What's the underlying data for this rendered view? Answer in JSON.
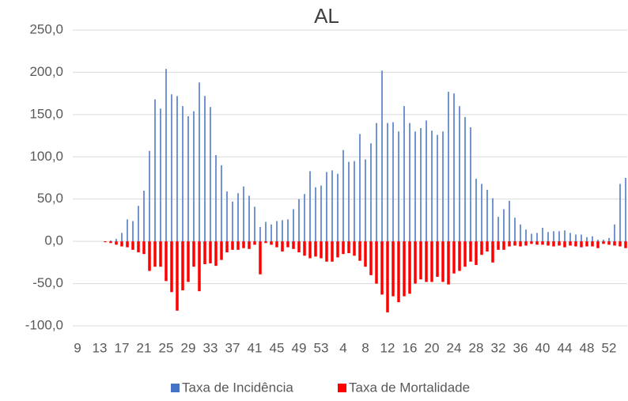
{
  "chart_data": {
    "type": "bar",
    "title": "AL",
    "categories": [
      "9",
      null,
      null,
      null,
      "13",
      null,
      null,
      null,
      "17",
      null,
      null,
      null,
      "21",
      null,
      null,
      null,
      "25",
      null,
      null,
      null,
      "29",
      null,
      null,
      null,
      "33",
      null,
      null,
      null,
      "37",
      null,
      null,
      null,
      "41",
      null,
      null,
      null,
      "45",
      null,
      null,
      null,
      "49",
      null,
      null,
      null,
      "53",
      null,
      null,
      null,
      "4",
      null,
      null,
      null,
      "8",
      null,
      null,
      null,
      "12",
      null,
      null,
      null,
      "16",
      null,
      null,
      null,
      "20",
      null,
      null,
      null,
      "24",
      null,
      null,
      null,
      "28",
      null,
      null,
      null,
      "32",
      null,
      null,
      null,
      "36",
      null,
      null,
      null,
      "40",
      null,
      null,
      null,
      "44",
      null,
      null,
      null,
      "48",
      null,
      null,
      null,
      "52",
      null,
      null,
      null
    ],
    "series": [
      {
        "name": "Taxa de Incidência",
        "color": "#4472c4",
        "values": [
          0,
          0,
          0,
          0,
          0,
          0,
          1,
          3,
          10,
          26,
          24,
          42,
          60,
          107,
          168,
          157,
          204,
          174,
          172,
          160,
          148,
          154,
          188,
          172,
          159,
          102,
          90,
          59,
          47,
          57,
          65,
          54,
          41,
          17,
          23,
          20,
          24,
          25,
          26,
          38,
          50,
          56,
          83,
          64,
          66,
          82,
          84,
          80,
          108,
          94,
          95,
          127,
          97,
          116,
          140,
          202,
          140,
          141,
          130,
          160,
          140,
          130,
          134,
          143,
          131,
          126,
          130,
          177,
          175,
          160,
          147,
          135,
          74,
          68,
          61,
          51,
          29,
          38,
          48,
          28,
          20,
          14,
          9,
          10,
          16,
          11,
          12,
          12,
          13,
          10,
          8,
          8,
          5,
          6,
          2,
          2,
          4,
          20,
          68,
          75
        ]
      },
      {
        "name": "Taxa de Mortalidade",
        "color": "#ff0000",
        "values": [
          0,
          0,
          0,
          0,
          0,
          -1,
          -2,
          -4,
          -6,
          -7,
          -10,
          -13,
          -15,
          -35,
          -30,
          -30,
          -47,
          -60,
          -82,
          -58,
          -48,
          -30,
          -59,
          -27,
          -26,
          -29,
          -22,
          -13,
          -10,
          -10,
          -8,
          -9,
          -4,
          -39,
          -2,
          -4,
          -7,
          -12,
          -7,
          -9,
          -13,
          -17,
          -20,
          -18,
          -20,
          -24,
          -24,
          -19,
          -15,
          -14,
          -17,
          -23,
          -30,
          -40,
          -50,
          -63,
          -84,
          -65,
          -72,
          -65,
          -62,
          -50,
          -45,
          -48,
          -48,
          -42,
          -48,
          -51,
          -38,
          -35,
          -30,
          -24,
          -28,
          -16,
          -12,
          -25,
          -10,
          -10,
          -6,
          -5,
          -6,
          -5,
          -3,
          -4,
          -4,
          -5,
          -6,
          -5,
          -7,
          -5,
          -6,
          -7,
          -6,
          -6,
          -8,
          -3,
          -4,
          -5,
          -6,
          -8
        ]
      }
    ],
    "ylim": [
      -100,
      250
    ],
    "yticks": [
      {
        "value": -100,
        "label": "-100,0"
      },
      {
        "value": -50,
        "label": "-50,0"
      },
      {
        "value": 0,
        "label": "0,0"
      },
      {
        "value": 50,
        "label": "50,0"
      },
      {
        "value": 100,
        "label": "100,0"
      },
      {
        "value": 150,
        "label": "150,0"
      },
      {
        "value": 200,
        "label": "200,0"
      },
      {
        "value": 250,
        "label": "250,0"
      }
    ],
    "grid": true,
    "legend": "bottom"
  }
}
